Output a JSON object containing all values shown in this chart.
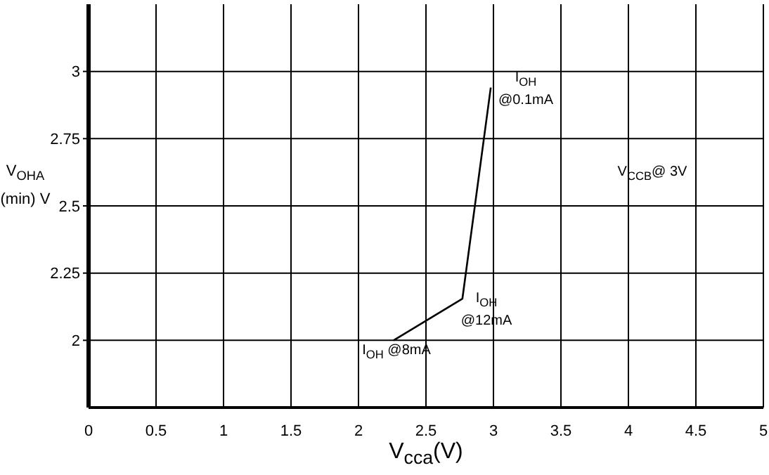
{
  "chart_data": {
    "type": "line",
    "xlabel": "V$_{cca}$(V)",
    "ylabel": "V$_{OHA}$ (min) V",
    "x": [
      2.26,
      2.77,
      2.98
    ],
    "series": [
      {
        "color": "#000000",
        "values": [
          2.0,
          2.155,
          2.94
        ]
      }
    ],
    "xlim": [
      0,
      5
    ],
    "xticks": [
      0,
      0.5,
      1,
      1.5,
      2,
      2.5,
      3,
      3.5,
      4,
      4.5,
      5
    ],
    "ylim": [
      1.75,
      3.25
    ],
    "yticks": [
      2,
      2.25,
      2.5,
      2.75,
      3
    ],
    "grid": true,
    "legend": false,
    "marker": "none",
    "line_style": "solid",
    "annotations": [
      "I$_{OH}$ @0.1mA",
      "I$_{OH}$ @12mA",
      "I$_{OH}$ @8mA",
      "V$_{CCB}$@ 3V"
    ]
  }
}
